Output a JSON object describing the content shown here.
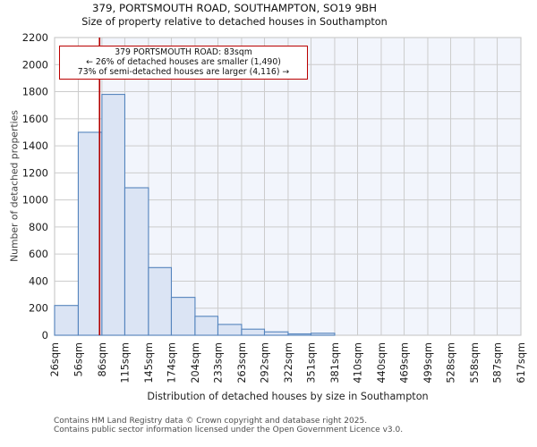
{
  "title": "379, PORTSMOUTH ROAD, SOUTHAMPTON, SO19 9BH",
  "subtitle": "Size of property relative to detached houses in Southampton",
  "annotation": {
    "line1": "379 PORTSMOUTH ROAD: 83sqm",
    "line2": "← 26% of detached houses are smaller (1,490)",
    "line3": "73% of semi-detached houses are larger (4,116) →"
  },
  "footer": {
    "line1": "Contains HM Land Registry data © Crown copyright and database right 2025.",
    "line2": "Contains public sector information licensed under the Open Government Licence v3.0."
  },
  "chart_data": {
    "type": "bar",
    "title": "379, PORTSMOUTH ROAD, SOUTHAMPTON, SO19 9BH — Size of property relative to detached houses in Southampton",
    "xlabel": "Distribution of detached houses by size in Southampton",
    "ylabel": "Number of detached properties",
    "bin_edges_sqm": [
      26,
      56,
      86,
      115,
      145,
      174,
      204,
      233,
      263,
      292,
      322,
      351,
      381,
      410,
      440,
      469,
      499,
      528,
      558,
      587,
      617
    ],
    "x_tick_labels": [
      "26sqm",
      "56sqm",
      "86sqm",
      "115sqm",
      "145sqm",
      "174sqm",
      "204sqm",
      "233sqm",
      "263sqm",
      "292sqm",
      "322sqm",
      "351sqm",
      "381sqm",
      "410sqm",
      "440sqm",
      "469sqm",
      "499sqm",
      "528sqm",
      "558sqm",
      "587sqm",
      "617sqm"
    ],
    "values": [
      220,
      1500,
      1780,
      1090,
      500,
      280,
      140,
      80,
      45,
      25,
      10,
      15,
      0,
      0,
      0,
      0,
      0,
      0,
      0,
      0
    ],
    "y_ticks": [
      0,
      200,
      400,
      600,
      800,
      1000,
      1200,
      1400,
      1600,
      1800,
      2000,
      2200
    ],
    "ylim": [
      0,
      2200
    ],
    "marker_value_sqm": 83,
    "grid": true,
    "legend": "none",
    "colors": {
      "bar_fill": "#dbe4f4",
      "bar_border": "#5584bd",
      "marker_line": "#b30000",
      "annotation_border": "#bb0000",
      "shaded_region": "#f2f5fc",
      "gridline": "#cccccc",
      "plot_background_left": "#ffffff"
    }
  }
}
